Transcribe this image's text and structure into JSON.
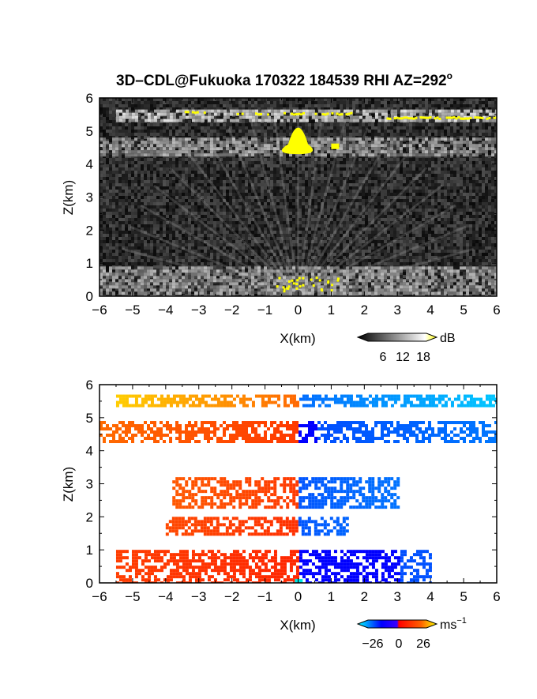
{
  "title": "3D–CDL@Fukuoka 170322 184539 RHI AZ=292",
  "title_degree": "o",
  "chart_data": [
    {
      "type": "heatmap",
      "quantity": "reflectivity",
      "xlabel": "X(km)",
      "ylabel": "Z(km)",
      "xlim": [
        -6,
        6
      ],
      "ylim": [
        0,
        6
      ],
      "x_ticks": [
        "−6",
        "−5",
        "−4",
        "−3",
        "−2",
        "−1",
        "0",
        "1",
        "2",
        "3",
        "4",
        "5",
        "6"
      ],
      "y_ticks": [
        "0",
        "1",
        "2",
        "3",
        "4",
        "5",
        "6"
      ],
      "colorbar": {
        "unit": "dB",
        "tick_labels": [
          "6",
          "12",
          "18"
        ],
        "colors": [
          "#000000",
          "#ffffff",
          "#ffff00"
        ]
      },
      "layers": [
        {
          "z_bottom": 5.35,
          "z_top": 5.65,
          "x_from": -5.5,
          "x_to": 6.0,
          "level": "high"
        },
        {
          "z_bottom": 4.3,
          "z_top": 4.8,
          "x_from": -6.0,
          "x_to": 6.0,
          "level": "medium"
        },
        {
          "z_bottom": 0.0,
          "z_top": 0.9,
          "x_from": -6.0,
          "x_to": 6.0,
          "level": "medium"
        }
      ],
      "grid": false
    },
    {
      "type": "heatmap",
      "quantity": "doppler velocity",
      "xlabel": "X(km)",
      "ylabel": "Z(km)",
      "xlim": [
        -6,
        6
      ],
      "ylim": [
        0,
        6
      ],
      "x_ticks": [
        "−6",
        "−5",
        "−4",
        "−3",
        "−2",
        "−1",
        "0",
        "1",
        "2",
        "3",
        "4",
        "5",
        "6"
      ],
      "y_ticks": [
        "0",
        "1",
        "2",
        "3",
        "4",
        "5",
        "6"
      ],
      "colorbar": {
        "unit": "ms",
        "unit_exponent": "−1",
        "tick_labels": [
          "−26",
          "0",
          "26"
        ],
        "colors": [
          "#00ffff",
          "#0000ff",
          "#ff0000",
          "#ffff00"
        ]
      },
      "layers": [
        {
          "z_bottom": 5.35,
          "z_top": 5.7,
          "x_from": -5.5,
          "x_to": 6.0,
          "velocity_left": 18,
          "velocity_right": -12
        },
        {
          "z_bottom": 4.3,
          "z_top": 4.9,
          "x_from": -6.0,
          "x_to": 6.0,
          "velocity_left": 8,
          "velocity_right": -6
        },
        {
          "z_bottom": 2.3,
          "z_top": 3.2,
          "x_from": -3.8,
          "x_to": 3.0,
          "velocity_left": 8,
          "velocity_right": -8
        },
        {
          "z_bottom": 1.5,
          "z_top": 2.0,
          "x_from": -4.0,
          "x_to": 1.5,
          "velocity_left": 6,
          "velocity_right": -8
        },
        {
          "z_bottom": 0.0,
          "z_top": 1.0,
          "x_from": -5.5,
          "x_to": 4.0,
          "velocity_left": 4,
          "velocity_right": -4
        }
      ],
      "grid": false
    }
  ]
}
